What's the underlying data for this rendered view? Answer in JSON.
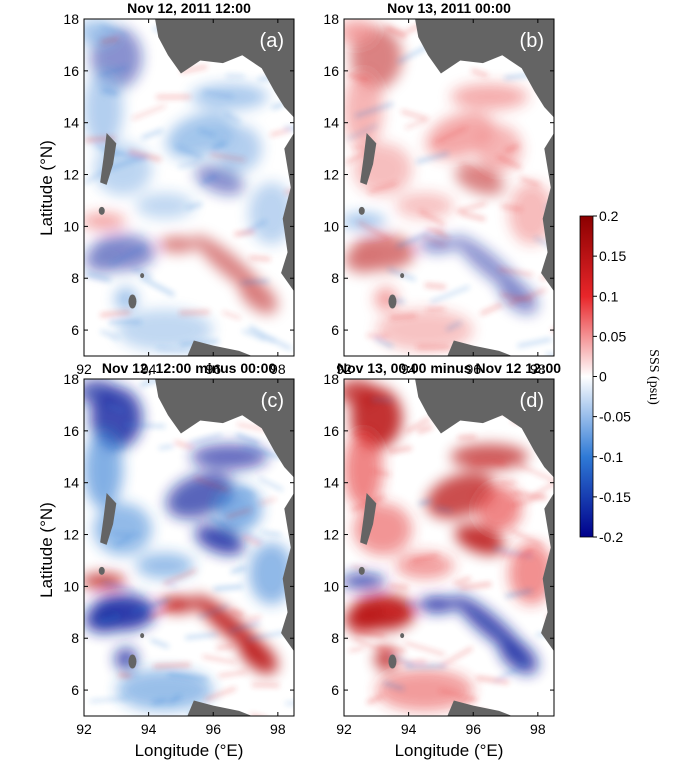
{
  "figure": {
    "panels": [
      {
        "title": "Nov 12, 2011 12:00",
        "label": "(a)",
        "sign": -1
      },
      {
        "title": "Nov 13, 2011 00:00",
        "label": "(b)",
        "sign": 1
      },
      {
        "title": "Nov 12, 12:00 minus 00:00",
        "label": "(c)",
        "sign": -1.6
      },
      {
        "title": "Nov 13, 00:00 minus Nov 12 12:00",
        "label": "(d)",
        "sign": 1.6
      }
    ],
    "y_axis_label": "Latitude (°N)",
    "x_axis_label": "Longitude (°E)",
    "x_ticks": [
      "92",
      "94",
      "96",
      "98"
    ],
    "y_ticks": [
      "6",
      "8",
      "10",
      "12",
      "14",
      "16",
      "18"
    ],
    "x_range": [
      92,
      98.5
    ],
    "y_range": [
      5,
      18
    ],
    "colorbar": {
      "label": "SSS (psu)",
      "range": [
        -0.2,
        0.2
      ],
      "ticks": [
        "0.2",
        "0.15",
        "0.1",
        "0.05",
        "0",
        "-0.05",
        "-0.1",
        "-0.15",
        "-0.2"
      ],
      "colors": {
        "high": "#8b0000",
        "mid_high": "#e8262a",
        "zero": "#ffffff",
        "mid_low": "#2f7ad6",
        "low": "#00008b"
      }
    },
    "land_color": "#646464"
  }
}
